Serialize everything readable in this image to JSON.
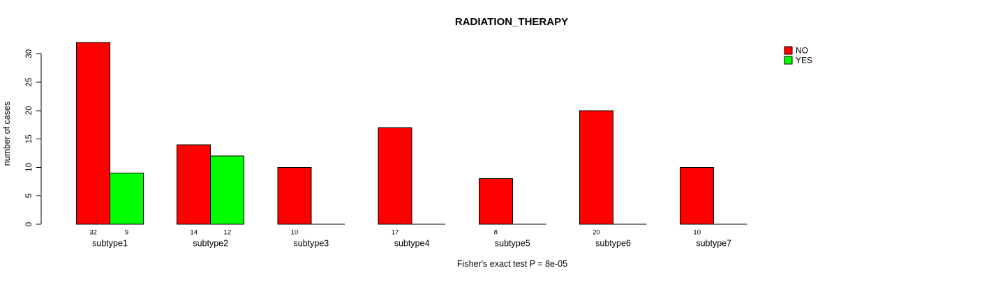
{
  "chart_data": {
    "type": "bar",
    "title": "RADIATION_THERAPY",
    "ylabel": "number of cases",
    "xlabel": "",
    "annotation": "Fisher's exact test P = 8e-05",
    "categories": [
      "subtype1",
      "subtype2",
      "subtype3",
      "subtype4",
      "subtype5",
      "subtype6",
      "subtype7"
    ],
    "series": [
      {
        "name": "NO",
        "color": "#FF0000",
        "values": [
          32,
          14,
          10,
          17,
          8,
          20,
          10
        ]
      },
      {
        "name": "YES",
        "color": "#00FF00",
        "values": [
          9,
          12,
          0,
          0,
          0,
          0,
          0
        ]
      }
    ],
    "bar_value_labels": {
      "NO": [
        "32",
        "14",
        "10",
        "17",
        "8",
        "20",
        "10"
      ],
      "YES": [
        "9",
        "12",
        "",
        "",
        "",
        "",
        ""
      ]
    },
    "yticks": [
      0,
      5,
      10,
      15,
      20,
      25,
      30
    ],
    "ylim": [
      0,
      32
    ],
    "grid": false,
    "legend_position": "top-right",
    "axis_color": "#000000",
    "background_color": "#ffffff"
  }
}
